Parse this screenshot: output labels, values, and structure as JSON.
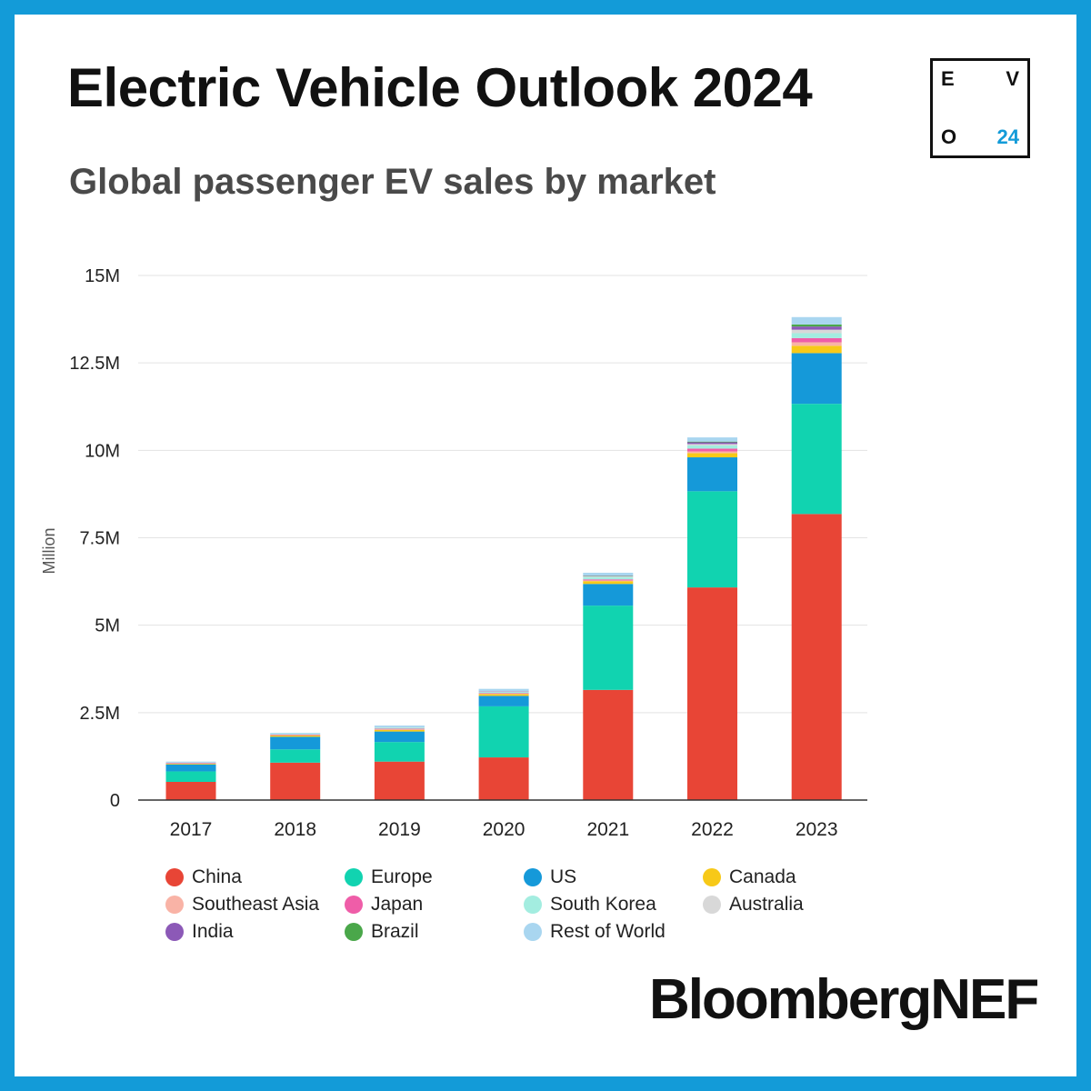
{
  "header": {
    "title": "Electric Vehicle Outlook 2024",
    "subtitle": "Global passenger EV sales by market"
  },
  "logo": {
    "top_left": "E",
    "top_right": "V",
    "bottom_left": "O",
    "bottom_right": "24"
  },
  "brand": "BloombergNEF",
  "colors": {
    "frame": "#139bd8",
    "logo_accent": "#139bd8"
  },
  "chart_data": {
    "type": "bar",
    "stacked": true,
    "title": "Global passenger EV sales by market",
    "ylabel": "Million",
    "xlabel": "",
    "ylim": [
      0,
      15
    ],
    "yticks": [
      0,
      2.5,
      5,
      7.5,
      10,
      12.5,
      15
    ],
    "ytick_labels": [
      "0",
      "2.5M",
      "5M",
      "7.5M",
      "10M",
      "12.5M",
      "15M"
    ],
    "categories": [
      "2017",
      "2018",
      "2019",
      "2020",
      "2021",
      "2022",
      "2023"
    ],
    "grid": true,
    "legend_position": "bottom",
    "series": [
      {
        "name": "China",
        "color": "#e84536",
        "values": [
          0.52,
          1.07,
          1.1,
          1.22,
          3.15,
          6.08,
          8.18
        ]
      },
      {
        "name": "Europe",
        "color": "#11d3b0",
        "values": [
          0.3,
          0.38,
          0.56,
          1.46,
          2.41,
          2.75,
          3.15
        ]
      },
      {
        "name": "US",
        "color": "#1599d9",
        "values": [
          0.2,
          0.36,
          0.3,
          0.3,
          0.62,
          0.97,
          1.45
        ]
      },
      {
        "name": "Canada",
        "color": "#f7c918",
        "values": [
          0.02,
          0.04,
          0.05,
          0.05,
          0.08,
          0.12,
          0.21
        ]
      },
      {
        "name": "Southeast Asia",
        "color": "#f9b3a6",
        "values": [
          0.0,
          0.0,
          0.01,
          0.01,
          0.02,
          0.05,
          0.1
        ]
      },
      {
        "name": "Japan",
        "color": "#ef5da8",
        "values": [
          0.02,
          0.02,
          0.02,
          0.02,
          0.03,
          0.08,
          0.12
        ]
      },
      {
        "name": "South Korea",
        "color": "#a3ede0",
        "values": [
          0.01,
          0.02,
          0.03,
          0.04,
          0.07,
          0.09,
          0.14
        ]
      },
      {
        "name": "Australia",
        "color": "#d8d8d8",
        "values": [
          0.0,
          0.0,
          0.01,
          0.01,
          0.02,
          0.04,
          0.1
        ]
      },
      {
        "name": "India",
        "color": "#8c59b7",
        "values": [
          0.0,
          0.0,
          0.0,
          0.01,
          0.01,
          0.05,
          0.09
        ]
      },
      {
        "name": "Brazil",
        "color": "#4aa74a",
        "values": [
          0.0,
          0.0,
          0.0,
          0.0,
          0.01,
          0.02,
          0.06
        ]
      },
      {
        "name": "Rest of World",
        "color": "#a9d6f0",
        "values": [
          0.03,
          0.03,
          0.05,
          0.06,
          0.08,
          0.12,
          0.21
        ]
      }
    ]
  }
}
